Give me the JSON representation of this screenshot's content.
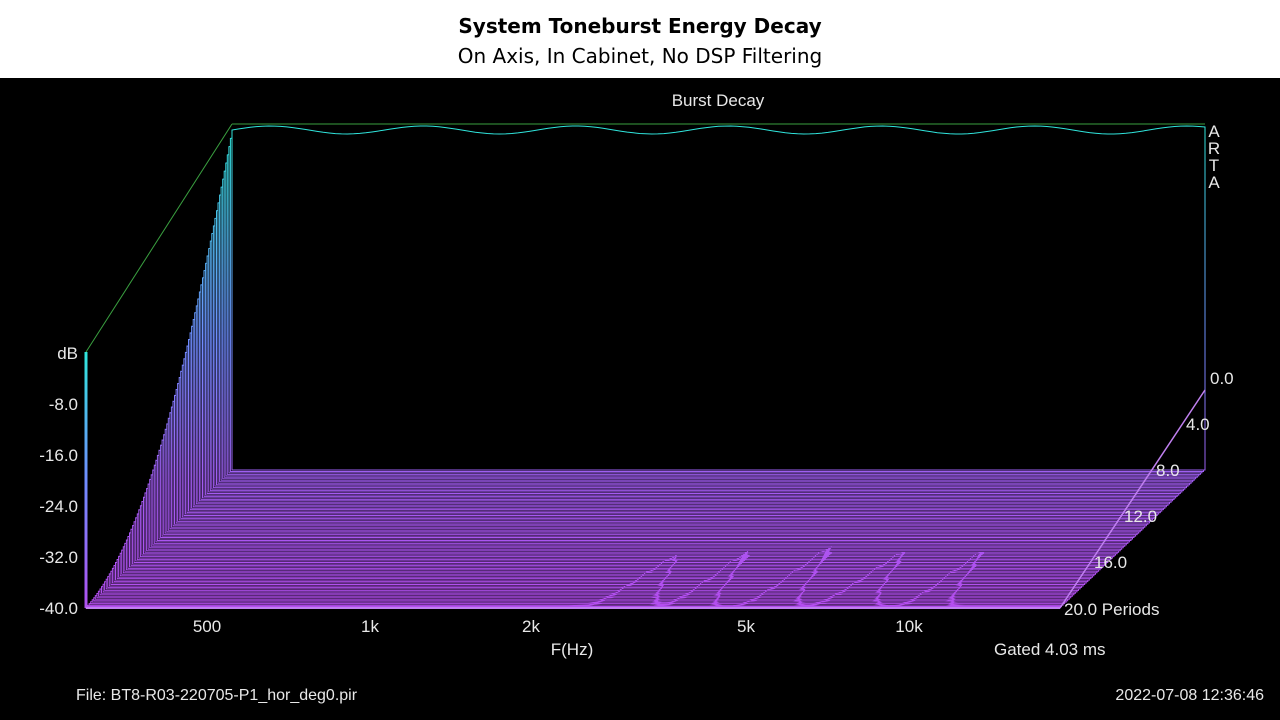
{
  "header": {
    "title": "System Toneburst Energy Decay",
    "subtitle": "On Axis, In Cabinet, No DSP Filtering"
  },
  "footer": {
    "file": "File: BT8-R03-220705-P1_hor_deg0.pir",
    "datetime": "2022-07-08   12:36:46"
  },
  "chart_data": {
    "type": "area",
    "title": "Burst Decay",
    "watermark": "ARTA",
    "xlabel": "F(Hz)",
    "zlabel": "Periods",
    "ylabel": "dB",
    "gate_label": "Gated 4.03 ms",
    "x_scale": "log",
    "x_ticks": [
      {
        "value": 500,
        "label": "500"
      },
      {
        "value": 1000,
        "label": "1k"
      },
      {
        "value": 2000,
        "label": "2k"
      },
      {
        "value": 5000,
        "label": "5k"
      },
      {
        "value": 10000,
        "label": "10k"
      }
    ],
    "y_ticks": [
      "dB",
      "-8.0",
      "-16.0",
      "-24.0",
      "-32.0",
      "-40.0"
    ],
    "z_ticks": [
      "0.0",
      "4.0",
      "8.0",
      "12.0",
      "16.0",
      "20.0 Periods"
    ],
    "ylim": [
      -40,
      0
    ],
    "zlim": [
      0,
      20
    ],
    "colors": {
      "top": "#30e8e0",
      "mid": "#7090ff",
      "bottom": "#b050f0"
    },
    "front_slice_level_db": -40,
    "back_slice_level_db": 0
  }
}
